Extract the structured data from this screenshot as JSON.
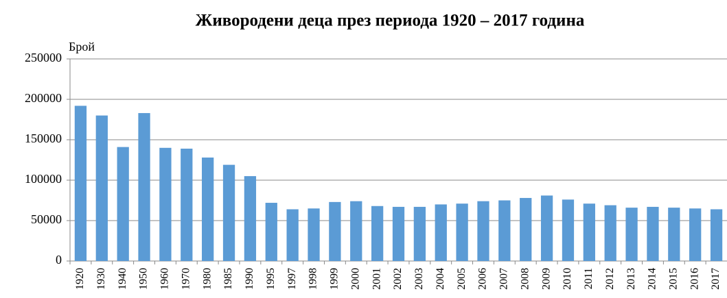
{
  "chart_data": {
    "type": "bar",
    "title": "Живородени деца през периода 1920 – 2017 година",
    "y_label": "Брой",
    "categories": [
      "1920",
      "1930",
      "1940",
      "1950",
      "1960",
      "1970",
      "1980",
      "1985",
      "1990",
      "1995",
      "1997",
      "1998",
      "1999",
      "2000",
      "2001",
      "2002",
      "2003",
      "2004",
      "2005",
      "2006",
      "2007",
      "2008",
      "2009",
      "2010",
      "2011",
      "2012",
      "2013",
      "2014",
      "2015",
      "2016",
      "2017"
    ],
    "values": [
      192000,
      180000,
      141000,
      183000,
      140000,
      139000,
      128000,
      119000,
      105000,
      72000,
      64000,
      65000,
      73000,
      74000,
      68000,
      67000,
      67000,
      70000,
      71000,
      74000,
      75000,
      78000,
      81000,
      76000,
      71000,
      69000,
      66000,
      67000,
      66000,
      65000,
      64000
    ],
    "color": "#5b9bd5",
    "ylim": [
      0,
      250000
    ],
    "yticks": [
      0,
      50000,
      100000,
      150000,
      200000,
      250000
    ],
    "grid": true
  }
}
